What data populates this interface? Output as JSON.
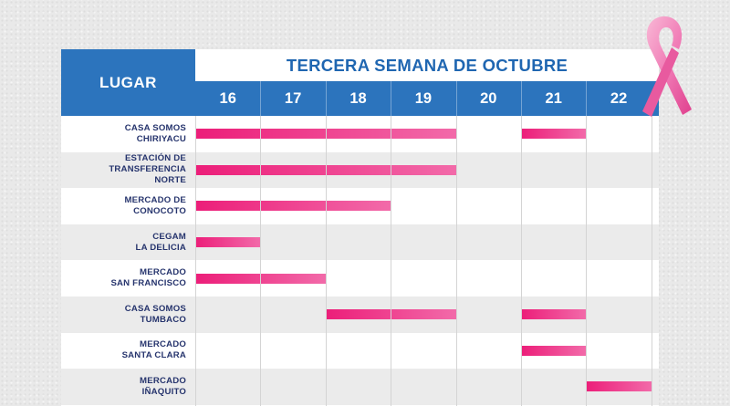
{
  "header": {
    "lugar_label": "LUGAR",
    "title": "TERCERA SEMANA DE OCTUBRE",
    "days": [
      "16",
      "17",
      "18",
      "19",
      "20",
      "21",
      "22"
    ]
  },
  "rows": [
    {
      "lines": [
        "CASA SOMOS",
        "CHIRIYACU"
      ],
      "active_days": [
        "16",
        "17",
        "18",
        "19",
        "21"
      ]
    },
    {
      "lines": [
        "ESTACIÓN DE",
        "TRANSFERENCIA",
        "NORTE"
      ],
      "active_days": [
        "16",
        "17",
        "18",
        "19"
      ]
    },
    {
      "lines": [
        "MERCADO DE",
        "CONOCOTO"
      ],
      "active_days": [
        "16",
        "17",
        "18"
      ]
    },
    {
      "lines": [
        "CEGAM",
        "LA DELICIA"
      ],
      "active_days": [
        "16"
      ]
    },
    {
      "lines": [
        "MERCADO",
        "SAN FRANCISCO"
      ],
      "active_days": [
        "16",
        "17"
      ]
    },
    {
      "lines": [
        "CASA SOMOS",
        "TUMBACO"
      ],
      "active_days": [
        "18",
        "19",
        "21"
      ]
    },
    {
      "lines": [
        "MERCADO",
        "SANTA CLARA"
      ],
      "active_days": [
        "21"
      ]
    },
    {
      "lines": [
        "MERCADO",
        "IÑAQUITO"
      ],
      "active_days": [
        "22"
      ]
    }
  ],
  "colors": {
    "header_blue": "#2c74bd",
    "title_blue": "#1f66b1",
    "place_text": "#26346d",
    "bar_pink": "#ec1e79",
    "ribbon_pink": "#f07ab5"
  },
  "icons": {
    "ribbon": "pink-awareness-ribbon-icon"
  }
}
